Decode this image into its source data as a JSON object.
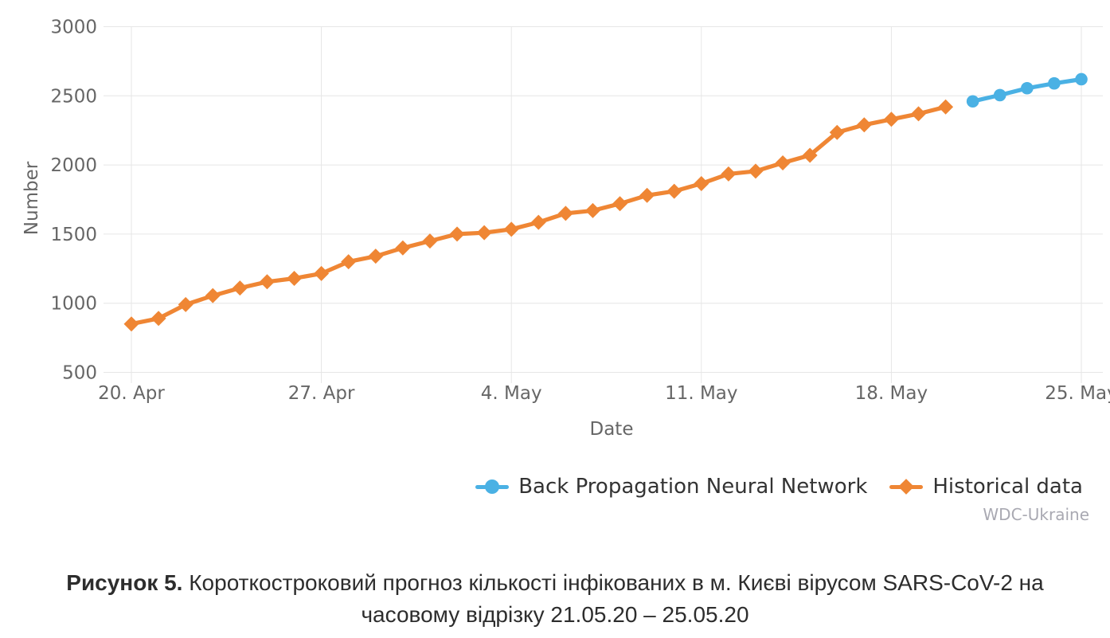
{
  "chart": {
    "y_axis": {
      "title": "Number",
      "ticks": [
        500,
        1000,
        1500,
        2000,
        2500,
        3000
      ]
    },
    "x_axis": {
      "title": "Date",
      "tick_labels": [
        "20. Apr",
        "27. Apr",
        "4. May",
        "11. May",
        "18. May",
        "25. May"
      ],
      "tick_day_offsets": [
        0,
        7,
        14,
        21,
        28,
        35
      ]
    },
    "colors": {
      "gridline": "#e6e6e6",
      "tick_text": "#666666",
      "axis_title_text": "#666666",
      "legend_text": "#333333"
    }
  },
  "chart_data": {
    "type": "line",
    "title": "",
    "xlabel": "Date",
    "ylabel": "Number",
    "ylim": [
      500,
      3000
    ],
    "grid": true,
    "legend_position": "bottom-right",
    "x_tick_labels": [
      "20. Apr",
      "27. Apr",
      "4. May",
      "11. May",
      "18. May",
      "25. May"
    ],
    "series": [
      {
        "id": "bpnn-forecast",
        "name": "Back Propagation Neural Network",
        "color": "#4ab1e4",
        "marker": "circle",
        "start_day_offset": 31,
        "dates": [
          "21.05",
          "22.05",
          "23.05",
          "24.05",
          "25.05"
        ],
        "values": [
          2460,
          2505,
          2555,
          2590,
          2620
        ]
      },
      {
        "id": "historical-data",
        "name": "Historical data",
        "color": "#ef8634",
        "marker": "diamond",
        "start_day_offset": 0,
        "dates": [
          "20.04",
          "21.04",
          "22.04",
          "23.04",
          "24.04",
          "25.04",
          "26.04",
          "27.04",
          "28.04",
          "29.04",
          "30.04",
          "01.05",
          "02.05",
          "03.05",
          "04.05",
          "05.05",
          "06.05",
          "07.05",
          "08.05",
          "09.05",
          "10.05",
          "11.05",
          "12.05",
          "13.05",
          "14.05",
          "15.05",
          "16.05",
          "17.05",
          "18.05",
          "19.05",
          "20.05"
        ],
        "values": [
          850,
          890,
          990,
          1055,
          1110,
          1155,
          1180,
          1215,
          1300,
          1340,
          1400,
          1450,
          1500,
          1510,
          1535,
          1585,
          1650,
          1670,
          1720,
          1780,
          1810,
          1865,
          1935,
          1955,
          2015,
          2070,
          2235,
          2290,
          2330,
          2370,
          2420
        ]
      }
    ]
  },
  "legend": {
    "items": [
      {
        "label": "Back Propagation Neural Network",
        "color": "#4ab1e4",
        "marker": "circle"
      },
      {
        "label": "Historical data",
        "color": "#ef8634",
        "marker": "diamond"
      }
    ]
  },
  "watermark": "WDC-Ukraine",
  "caption": {
    "label": "Рисунок 5.",
    "line1_rest": "Короткостроковий прогноз кількості інфікованих в м. Києві вірусом SARS-CoV-2 на",
    "line2": "часовому відрізку 21.05.20 – 25.05.20"
  }
}
